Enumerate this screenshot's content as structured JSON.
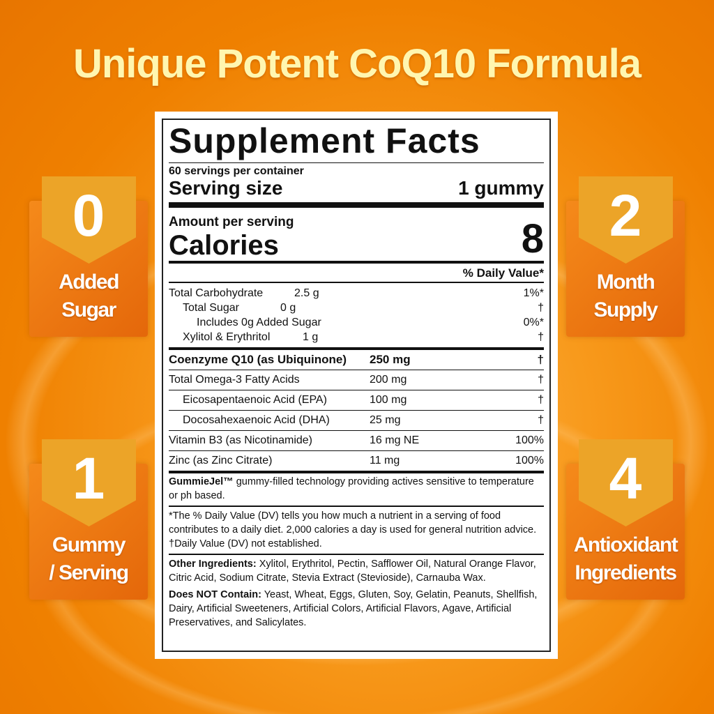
{
  "title": "Unique Potent CoQ10 Formula",
  "colors": {
    "background": "#f08800",
    "title": "#fff6b0",
    "badge_card": "#e8700c",
    "badge_tab": "#eca428"
  },
  "badges": [
    {
      "number": "0",
      "label1": "Added",
      "label2": "Sugar"
    },
    {
      "number": "2",
      "label1": "Month",
      "label2": "Supply"
    },
    {
      "number": "1",
      "label1": "Gummy",
      "label2": "/ Serving"
    },
    {
      "number": "4",
      "label1": "Antioxidant",
      "label2": "Ingredients"
    }
  ],
  "facts": {
    "heading": "Supplement Facts",
    "servings": "60 servings per container",
    "serving_size_label": "Serving size",
    "serving_size": "1 gummy",
    "amount_label": "Amount per serving",
    "calories_label": "Calories",
    "calories": "8",
    "dv_header": "% Daily Value*",
    "carbs": [
      {
        "name": "Total Carbohydrate",
        "amount": "2.5 g",
        "dv": "1%*"
      },
      {
        "name": "Total Sugar",
        "amount": "0 g",
        "dv": "†"
      },
      {
        "name": "Includes 0g Added Sugar",
        "amount": "",
        "dv": "0%*"
      },
      {
        "name": "Xylitol & Erythritol",
        "amount": "1 g",
        "dv": "†"
      }
    ],
    "nutrients": [
      {
        "name": "Coenzyme Q10 (as Ubiquinone)",
        "amount": "250 mg",
        "dv": "†"
      },
      {
        "name": "Total Omega-3 Fatty Acids",
        "amount": "200 mg",
        "dv": "†"
      },
      {
        "name": "Eicosapentaenoic Acid (EPA)",
        "amount": "100 mg",
        "dv": "†"
      },
      {
        "name": "Docosahexaenoic Acid (DHA)",
        "amount": "25 mg",
        "dv": "†"
      },
      {
        "name": "Vitamin B3 (as Nicotinamide)",
        "amount": "16 mg NE",
        "dv": "100%"
      },
      {
        "name": "Zinc (as Zinc Citrate)",
        "amount": "11 mg",
        "dv": "100%"
      }
    ],
    "gummiejel_bold": "GummieJel™",
    "gummiejel_text": " gummy-filled technology providing actives sensitive to temperature or ph based.",
    "footnote1": "*The % Daily Value (DV) tells you how much a nutrient in a serving of food contributes to a daily diet. 2,000 calories a day is used for general nutrition advice.",
    "footnote2": "†Daily Value (DV) not established.",
    "other_label": "Other Ingredients:",
    "other_text": " Xylitol, Erythritol, Pectin, Safflower Oil, Natural Orange Flavor, Citric Acid, Sodium Citrate, Stevia Extract (Stevioside), Carnauba Wax.",
    "free_label": "Does NOT Contain:",
    "free_text": " Yeast, Wheat, Eggs, Gluten, Soy, Gelatin, Peanuts, Shellfish, Dairy, Artificial Sweeteners, Artificial Colors, Artificial Flavors, Agave, Artificial Preservatives, and Salicylates."
  }
}
